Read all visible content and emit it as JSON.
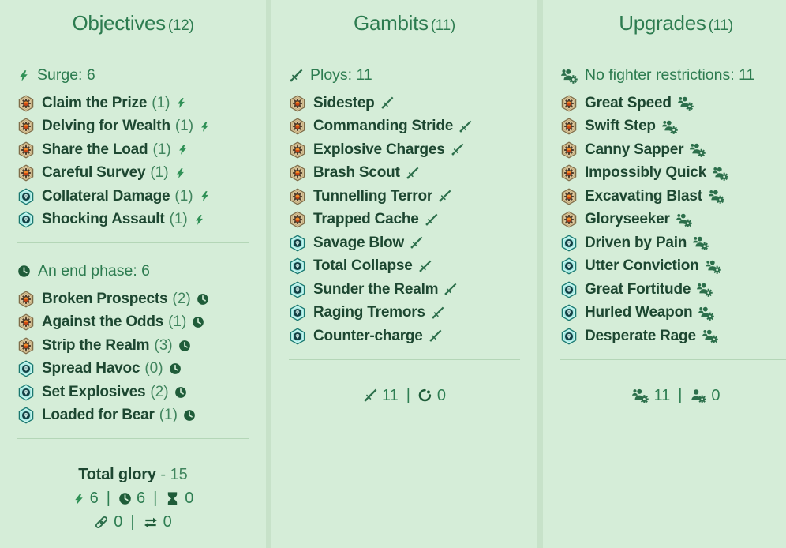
{
  "theme": {
    "page_bg": "#c7e2c9",
    "card_bg": "#d5edd8",
    "divider": "#b4d6b7",
    "heading_green": "#2d7c50",
    "card_name_green": "#1d4731",
    "count_green": "#41855e",
    "icon_green": "#1f5c39",
    "bolt_green": "#2f9156",
    "hex_tan": "#decba3",
    "hex_tan_border": "#7f6d49",
    "hex_teal": "#9fe7e0",
    "hex_teal_border": "#19776f"
  },
  "columns": [
    {
      "id": "objectives",
      "title": "Objectives",
      "count": "(12)",
      "sections": [
        {
          "icon": "lightning-icon",
          "label": "Surge: 6",
          "cards": [
            {
              "set_icon": "hex-gear-icon",
              "name": "Claim the Prize",
              "count": "(1)",
              "type_icon": "lightning-icon"
            },
            {
              "set_icon": "hex-gear-icon",
              "name": "Delving for Wealth",
              "count": "(1)",
              "type_icon": "lightning-icon"
            },
            {
              "set_icon": "hex-gear-icon",
              "name": "Share the Load",
              "count": "(1)",
              "type_icon": "lightning-icon"
            },
            {
              "set_icon": "hex-gear-icon",
              "name": "Careful Survey",
              "count": "(1)",
              "type_icon": "lightning-icon"
            },
            {
              "set_icon": "hex-skull-icon",
              "name": "Collateral Damage",
              "count": "(1)",
              "type_icon": "lightning-icon"
            },
            {
              "set_icon": "hex-skull-icon",
              "name": "Shocking Assault",
              "count": "(1)",
              "type_icon": "lightning-icon"
            }
          ]
        },
        {
          "icon": "clock-icon",
          "label": "An end phase: 6",
          "cards": [
            {
              "set_icon": "hex-gear-icon",
              "name": "Broken Prospects",
              "count": "(2)",
              "type_icon": "clock-icon"
            },
            {
              "set_icon": "hex-gear-icon",
              "name": "Against the Odds",
              "count": "(1)",
              "type_icon": "clock-icon"
            },
            {
              "set_icon": "hex-gear-icon",
              "name": "Strip the Realm",
              "count": "(3)",
              "type_icon": "clock-icon"
            },
            {
              "set_icon": "hex-skull-icon",
              "name": "Spread Havoc",
              "count": "(0)",
              "type_icon": "clock-icon"
            },
            {
              "set_icon": "hex-skull-icon",
              "name": "Set Explosives",
              "count": "(2)",
              "type_icon": "clock-icon"
            },
            {
              "set_icon": "hex-skull-icon",
              "name": "Loaded for Bear",
              "count": "(1)",
              "type_icon": "clock-icon"
            }
          ]
        }
      ],
      "footer": {
        "glory_label": "Total glory",
        "glory_value": "- 15",
        "rows": [
          [
            {
              "icon": "lightning-icon",
              "value": "6"
            },
            {
              "icon": "clock-icon",
              "value": "6"
            },
            {
              "icon": "hourglass-icon",
              "value": "0"
            }
          ],
          [
            {
              "icon": "link-icon",
              "value": "0"
            },
            {
              "icon": "swap-icon",
              "value": "0"
            }
          ]
        ]
      }
    },
    {
      "id": "gambits",
      "title": "Gambits",
      "count": "(11)",
      "sections": [
        {
          "icon": "sword-icon",
          "label": "Ploys: 11",
          "cards": [
            {
              "set_icon": "hex-gear-icon",
              "name": "Sidestep",
              "type_icon": "sword-icon"
            },
            {
              "set_icon": "hex-gear-icon",
              "name": "Commanding Stride",
              "type_icon": "sword-icon"
            },
            {
              "set_icon": "hex-gear-icon",
              "name": "Explosive Charges",
              "type_icon": "sword-icon"
            },
            {
              "set_icon": "hex-gear-icon",
              "name": "Brash Scout",
              "type_icon": "sword-icon"
            },
            {
              "set_icon": "hex-gear-icon",
              "name": "Tunnelling Terror",
              "type_icon": "sword-icon"
            },
            {
              "set_icon": "hex-gear-icon",
              "name": "Trapped Cache",
              "type_icon": "sword-icon"
            },
            {
              "set_icon": "hex-skull-icon",
              "name": "Savage Blow",
              "type_icon": "sword-icon"
            },
            {
              "set_icon": "hex-skull-icon",
              "name": "Total Collapse",
              "type_icon": "sword-icon"
            },
            {
              "set_icon": "hex-skull-icon",
              "name": "Sunder the Realm",
              "type_icon": "sword-icon"
            },
            {
              "set_icon": "hex-skull-icon",
              "name": "Raging Tremors",
              "type_icon": "sword-icon"
            },
            {
              "set_icon": "hex-skull-icon",
              "name": "Counter-charge",
              "type_icon": "sword-icon"
            }
          ]
        }
      ],
      "footer": {
        "rows": [
          [
            {
              "icon": "sword-icon",
              "value": "11"
            },
            {
              "icon": "swirl-icon",
              "value": "0"
            }
          ]
        ]
      }
    },
    {
      "id": "upgrades",
      "title": "Upgrades",
      "count": "(11)",
      "sections": [
        {
          "icon": "users-gear-icon",
          "label": "No fighter restrictions: 11",
          "cards": [
            {
              "set_icon": "hex-gear-icon",
              "name": "Great Speed",
              "type_icon": "users-gear-icon"
            },
            {
              "set_icon": "hex-gear-icon",
              "name": "Swift Step",
              "type_icon": "users-gear-icon"
            },
            {
              "set_icon": "hex-gear-icon",
              "name": "Canny Sapper",
              "type_icon": "users-gear-icon"
            },
            {
              "set_icon": "hex-gear-icon",
              "name": "Impossibly Quick",
              "type_icon": "users-gear-icon"
            },
            {
              "set_icon": "hex-gear-icon",
              "name": "Excavating Blast",
              "type_icon": "users-gear-icon"
            },
            {
              "set_icon": "hex-gear-icon",
              "name": "Gloryseeker",
              "type_icon": "users-gear-icon"
            },
            {
              "set_icon": "hex-skull-icon",
              "name": "Driven by Pain",
              "type_icon": "users-gear-icon"
            },
            {
              "set_icon": "hex-skull-icon",
              "name": "Utter Conviction",
              "type_icon": "users-gear-icon"
            },
            {
              "set_icon": "hex-skull-icon",
              "name": "Great Fortitude",
              "type_icon": "users-gear-icon"
            },
            {
              "set_icon": "hex-skull-icon",
              "name": "Hurled Weapon",
              "type_icon": "users-gear-icon"
            },
            {
              "set_icon": "hex-skull-icon",
              "name": "Desperate Rage",
              "type_icon": "users-gear-icon"
            }
          ]
        }
      ],
      "footer": {
        "rows": [
          [
            {
              "icon": "users-gear-icon",
              "value": "11"
            },
            {
              "icon": "user-gear-icon",
              "value": "0"
            }
          ]
        ]
      }
    }
  ]
}
